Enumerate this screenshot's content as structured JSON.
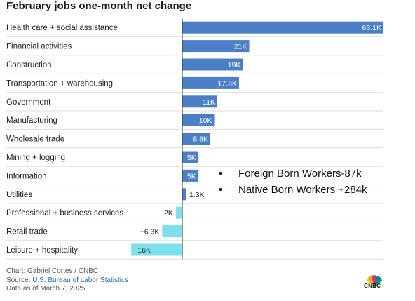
{
  "title": "February jobs one-month net change",
  "chart_data": {
    "type": "bar",
    "orientation": "horizontal",
    "title": "February jobs one-month net change",
    "categories": [
      "Health care + social assistance",
      "Financial activities",
      "Construction",
      "Transportation + warehousing",
      "Government",
      "Manufacturing",
      "Wholesale trade",
      "Mining + logging",
      "Information",
      "Utilities",
      "Professional + business services",
      "Retail trade",
      "Leisure + hospitality"
    ],
    "values": [
      63.1,
      21,
      19,
      17.8,
      11,
      10,
      8.8,
      5,
      5,
      1.3,
      -2,
      -6.3,
      -16
    ],
    "value_labels": [
      "63.1K",
      "21K",
      "19K",
      "17.8K",
      "11K",
      "10K",
      "8.8K",
      "5K",
      "5K",
      "1.3K",
      "−2K",
      "−6.3K",
      "−16K"
    ],
    "unit": "thousands",
    "xlim": [
      -17,
      63.1
    ],
    "grid": true,
    "colors": {
      "positive": "#4b80c7",
      "negative": "#7ee0ea",
      "grid": "#dddddd",
      "zero_line": "#333333",
      "label_inside": "#ffffff",
      "label_outside": "#222222"
    }
  },
  "annotations": [
    "Foreign Born Workers-87k",
    "Native Born Workers +284k"
  ],
  "footer": {
    "chart_credit": "Chart: Gabriel Cortes / CNBC",
    "source_prefix": "Source: ",
    "source_name": "U.S. Bureau of Labor Statistics",
    "data_date": "Data as of March 7, 2025"
  },
  "logo": {
    "text": "CNBC",
    "icon": "peacock-logo-icon"
  }
}
